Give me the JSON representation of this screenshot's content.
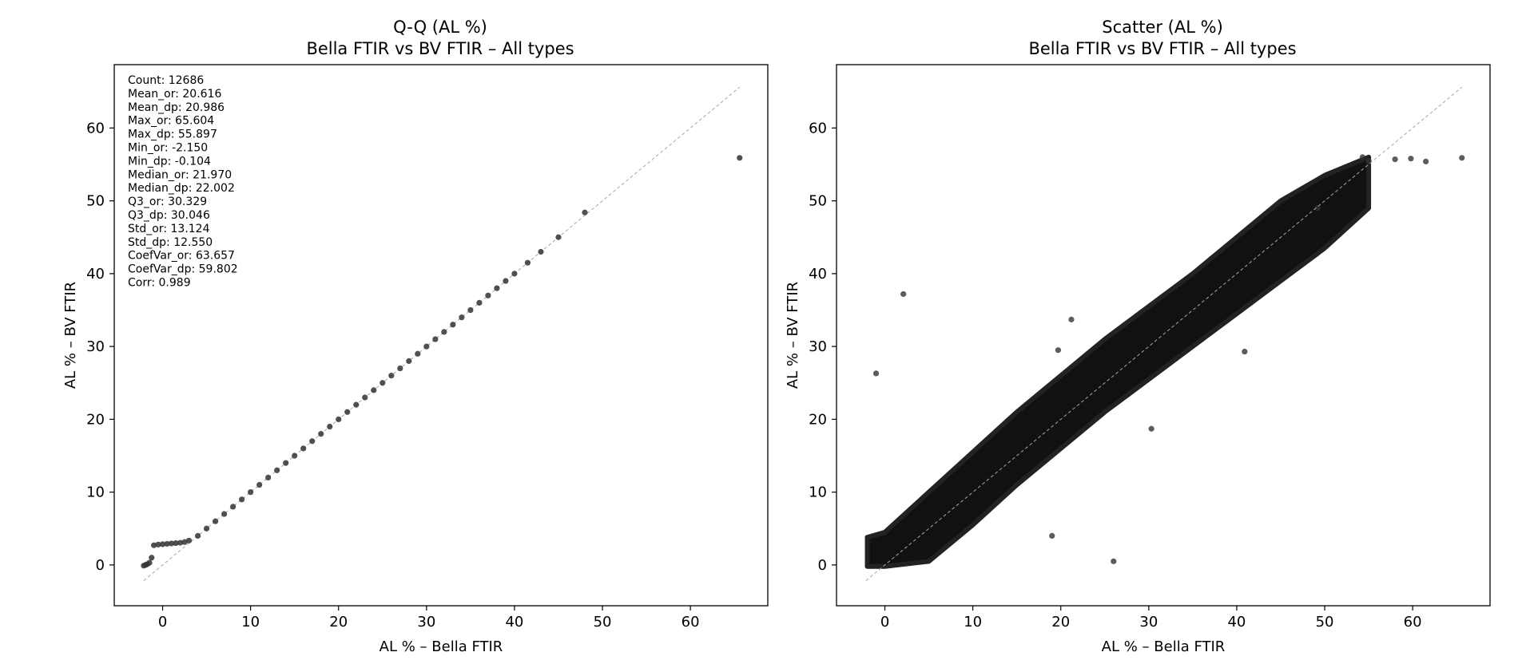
{
  "colors": {
    "marker": "#333333",
    "reference_line": "#a6a6a6",
    "frame": "#000000"
  },
  "chart_data": [
    {
      "type": "scatter",
      "title": "Q-Q (AL %)",
      "subtitle": "Bella FTIR vs BV FTIR – All types",
      "xlabel": "AL % – Bella FTIR",
      "ylabel": "AL % – BV FTIR",
      "xlim": [
        -5.5,
        68.8
      ],
      "ylim": [
        -5.6,
        68.7
      ],
      "xticks": [
        0,
        10,
        20,
        30,
        40,
        50,
        60
      ],
      "yticks": [
        0,
        10,
        20,
        30,
        40,
        50,
        60
      ],
      "grid": false,
      "reference_line": {
        "x": [
          -2.15,
          65.6
        ],
        "y": [
          -2.15,
          65.6
        ]
      },
      "stats": [
        "Count: 12686",
        "Mean_or: 20.616",
        "Mean_dp: 20.986",
        "Max_or: 65.604",
        "Max_dp: 55.897",
        "Min_or: -2.150",
        "Min_dp: -0.104",
        "Median_or: 21.970",
        "Median_dp: 22.002",
        "Q3_or: 30.329",
        "Q3_dp: 30.046",
        "Std_or: 13.124",
        "Std_dp: 12.550",
        "CoefVar_or: 63.657",
        "CoefVar_dp: 59.802",
        "Corr: 0.989"
      ],
      "points": {
        "x": [
          -2.15,
          -1.95,
          -1.75,
          -1.5,
          -1.25,
          -1.0,
          -0.5,
          0.0,
          0.5,
          1.0,
          1.5,
          2.0,
          2.5,
          3.0,
          4.0,
          5.0,
          6.0,
          7.0,
          8.0,
          9.0,
          10.0,
          11.0,
          12.0,
          13.0,
          14.0,
          15.0,
          16.0,
          17.0,
          18.0,
          19.0,
          20.0,
          21.0,
          22.0,
          23.0,
          24.0,
          25.0,
          26.0,
          27.0,
          28.0,
          29.0,
          30.0,
          31.0,
          32.0,
          33.0,
          34.0,
          35.0,
          36.0,
          37.0,
          38.0,
          39.0,
          40.0,
          41.5,
          43.0,
          45.0,
          48.0,
          65.6
        ],
        "y": [
          -0.1,
          0.0,
          0.1,
          0.3,
          1.0,
          2.7,
          2.8,
          2.85,
          2.9,
          2.95,
          3.0,
          3.05,
          3.15,
          3.35,
          4.0,
          5.0,
          6.0,
          7.0,
          8.0,
          9.0,
          10.0,
          11.0,
          12.0,
          13.0,
          14.0,
          15.0,
          16.0,
          17.0,
          18.0,
          19.0,
          20.0,
          21.0,
          22.0,
          23.0,
          24.0,
          25.0,
          26.0,
          27.0,
          28.0,
          29.0,
          30.0,
          31.0,
          32.0,
          33.0,
          34.0,
          35.0,
          36.0,
          37.0,
          38.0,
          39.0,
          40.0,
          41.5,
          43.0,
          45.0,
          48.4,
          55.9
        ]
      }
    },
    {
      "type": "scatter",
      "title": "Scatter (AL %)",
      "subtitle": "Bella FTIR vs BV FTIR – All types",
      "xlabel": "AL % – Bella FTIR",
      "ylabel": "AL % – BV FTIR",
      "xlim": [
        -5.5,
        68.8
      ],
      "ylim": [
        -5.6,
        68.7
      ],
      "xticks": [
        0,
        10,
        20,
        30,
        40,
        50,
        60
      ],
      "yticks": [
        0,
        10,
        20,
        30,
        40,
        50,
        60
      ],
      "grid": false,
      "reference_line": {
        "x": [
          -2.15,
          65.6
        ],
        "y": [
          -2.15,
          65.6
        ]
      },
      "density_band": {
        "x": [
          -2.0,
          0,
          5,
          10,
          15,
          20,
          25,
          30,
          35,
          40,
          45,
          50,
          55
        ],
        "y_lower": [
          -0.2,
          -0.2,
          0.5,
          5.5,
          11.0,
          16.0,
          21.0,
          25.5,
          30.0,
          34.5,
          39.0,
          43.5,
          49.0
        ],
        "y_upper": [
          3.8,
          4.5,
          10.0,
          15.5,
          21.0,
          26.0,
          31.0,
          35.5,
          40.0,
          45.0,
          50.0,
          53.5,
          56.0
        ]
      },
      "outliers": {
        "x": [
          -1.0,
          2.1,
          26.0,
          19.0,
          30.3,
          40.9,
          21.2,
          19.7,
          61.5,
          65.6,
          58.0,
          59.8,
          54.3,
          55.0,
          49.2
        ],
        "y": [
          26.3,
          37.2,
          0.5,
          4.0,
          18.7,
          29.3,
          33.7,
          29.5,
          55.4,
          55.9,
          55.7,
          55.8,
          56.0,
          55.5,
          49.0
        ]
      }
    }
  ]
}
